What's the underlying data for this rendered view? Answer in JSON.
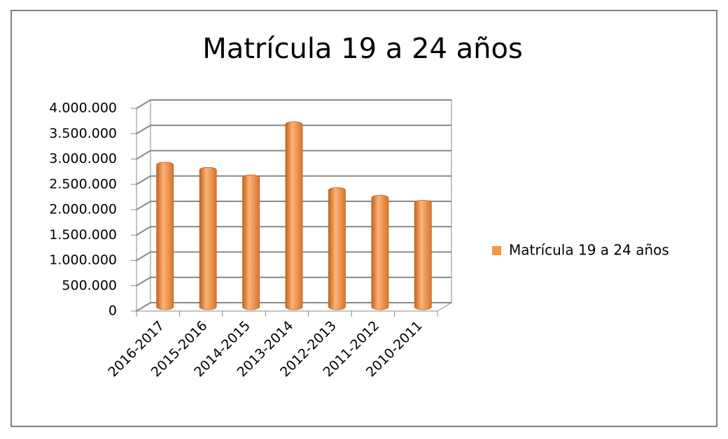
{
  "chart_data": {
    "type": "bar",
    "title": "Matrícula 19 a 24 años",
    "categories": [
      "2016-2017",
      "2015-2016",
      "2014-2015",
      "2013-2014",
      "2012-2013",
      "2011-2012",
      "2010-2011"
    ],
    "series": [
      {
        "name": "Matrícula 19 a 24 años",
        "color": "#f79646",
        "values": [
          2800000,
          2700000,
          2550000,
          3600000,
          2300000,
          2150000,
          2050000
        ]
      }
    ],
    "ylim": [
      0,
      4000000
    ],
    "yticks": [
      0,
      {
        "value": 500000,
        "label": "500.000"
      },
      {
        "value": 1000000,
        "label": "1.000.000"
      },
      {
        "value": 1500000,
        "label": "1.500.000"
      },
      {
        "value": 2000000,
        "label": "2.000.000"
      },
      {
        "value": 2500000,
        "label": "2.500.000"
      },
      {
        "value": 3000000,
        "label": "3.000.000"
      },
      {
        "value": 3500000,
        "label": "3.500.000"
      },
      {
        "value": 4000000,
        "label": "4.000.000"
      }
    ],
    "grid": true,
    "legend": "right"
  }
}
